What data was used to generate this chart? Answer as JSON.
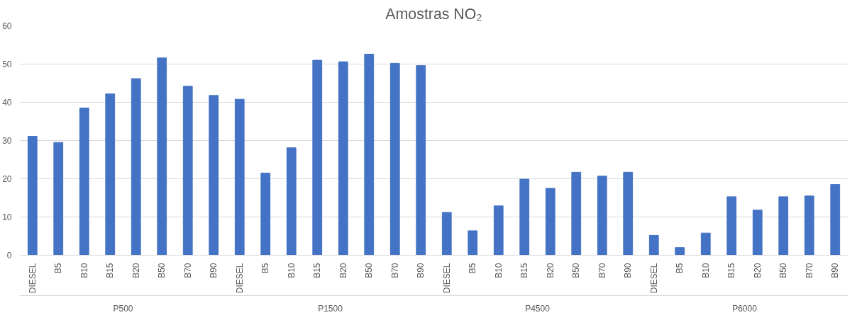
{
  "chart_data": {
    "type": "bar",
    "title": "Amostras NO₂",
    "categories": [
      "DIESEL",
      "B5",
      "B10",
      "B15",
      "B20",
      "B50",
      "B70",
      "B90",
      "DIESEL",
      "B5",
      "B10",
      "B15",
      "B20",
      "B50",
      "B70",
      "B90",
      "DIESEL",
      "B5",
      "B10",
      "B15",
      "B20",
      "B50",
      "B70",
      "B90",
      "DIESEL",
      "B5",
      "B10",
      "B15",
      "B20",
      "B50",
      "B70",
      "B90"
    ],
    "values": [
      31.1,
      29.5,
      38.5,
      42.2,
      46.2,
      51.6,
      44.2,
      41.8,
      40.8,
      21.5,
      28.1,
      51.0,
      50.6,
      52.6,
      50.2,
      49.6,
      11.2,
      6.4,
      12.9,
      19.9,
      17.5,
      21.7,
      20.7,
      21.7,
      5.2,
      2.0,
      5.8,
      15.3,
      11.8,
      15.3,
      15.5,
      18.5
    ],
    "color": "#4472c4",
    "annotations": [
      "P500",
      "P1500",
      "P4500",
      "P6000"
    ],
    "ylim": [
      0,
      60
    ],
    "yticks": [
      0,
      10,
      20,
      30,
      40,
      50,
      60
    ],
    "grid": "y"
  }
}
